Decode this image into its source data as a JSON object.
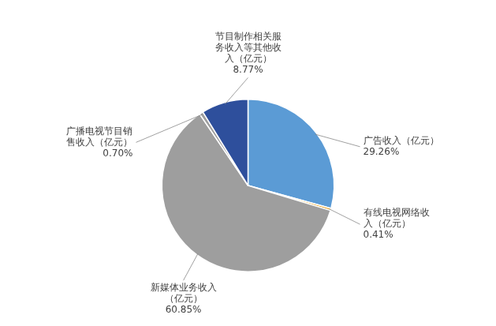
{
  "chart_data": {
    "type": "pie",
    "categories": [
      "广告收入（亿元）",
      "有线电视网络收\n入（亿元）",
      "新媒体业务收入\n（亿元）",
      "广播电视节目销\n售收入（亿元）",
      "节目制作相关服\n务收入等其他收\n入（亿元）"
    ],
    "values": [
      29.26,
      0.41,
      60.85,
      0.7,
      8.77
    ],
    "value_labels": [
      "29.26%",
      "0.41%",
      "60.85%",
      "0.70%",
      "8.77%"
    ],
    "colors": [
      "#5b9bd5",
      "#e8a020",
      "#9e9e9e",
      "#9e9e9e",
      "#2e4f9c"
    ],
    "data_labels": true
  }
}
